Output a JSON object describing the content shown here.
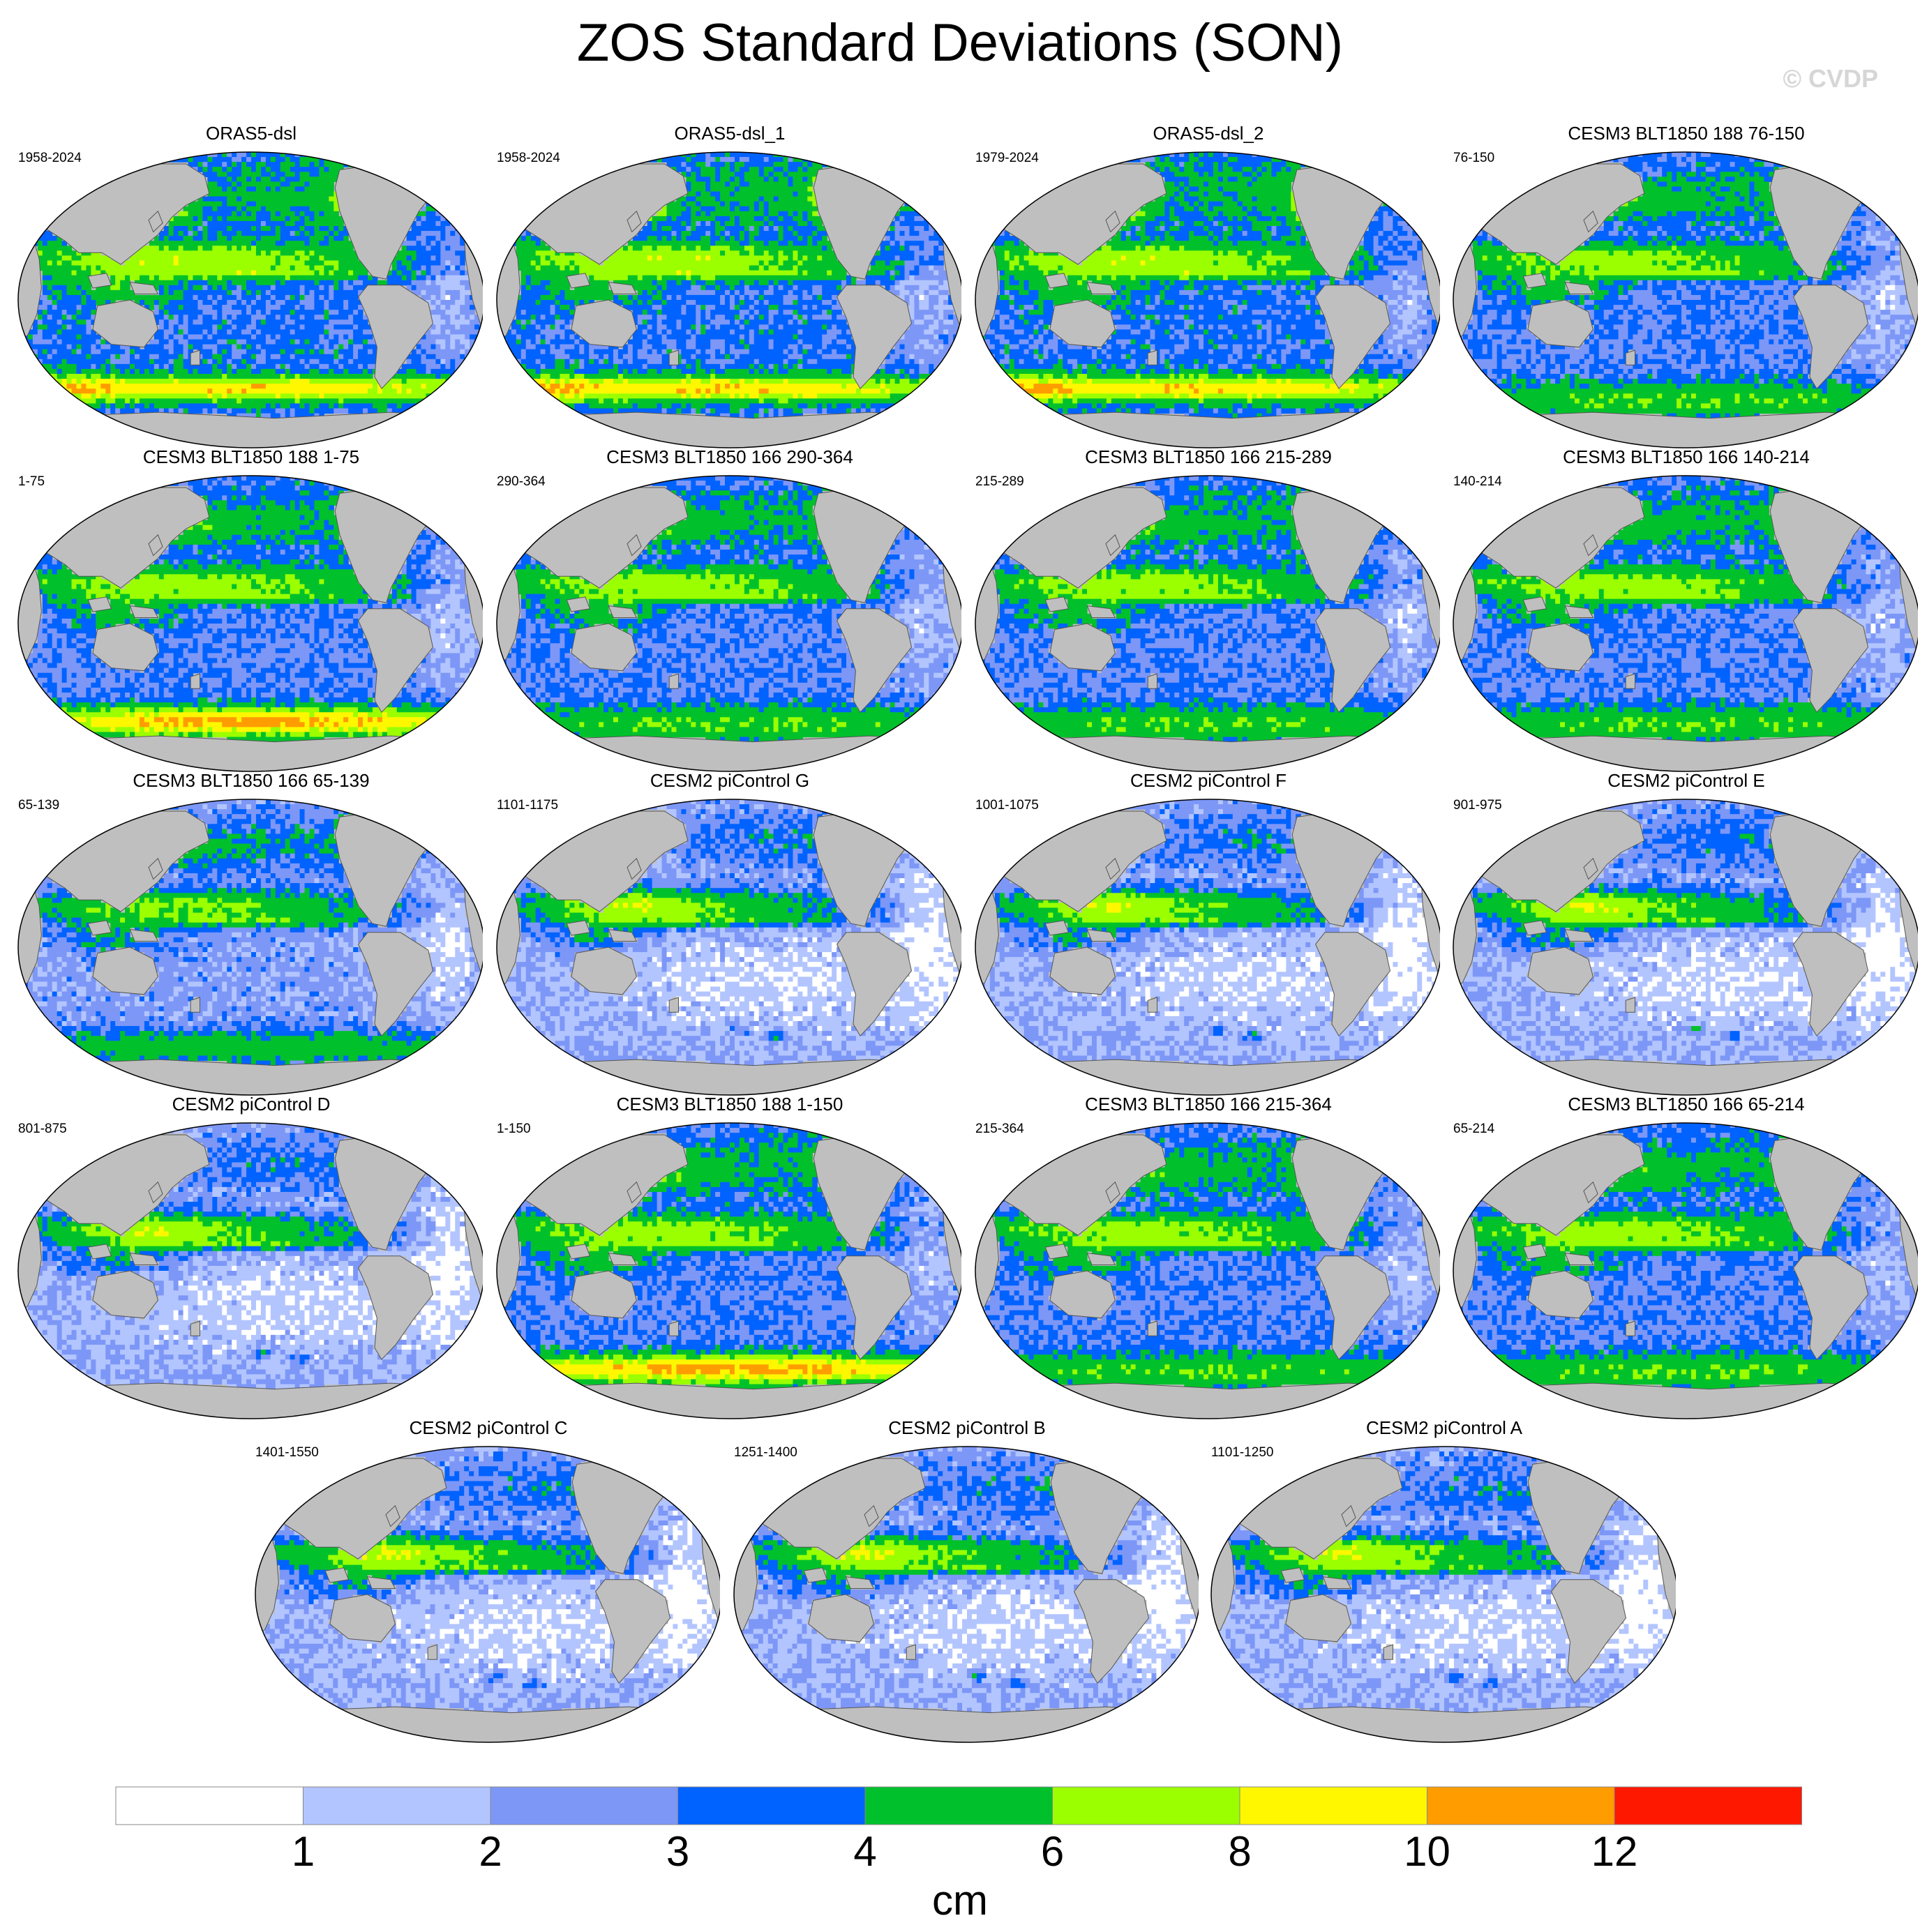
{
  "title": "ZOS Standard Deviations (SON)",
  "watermark": "© CVDP",
  "colorbar": {
    "unit": "cm",
    "levels": [
      1,
      2,
      3,
      4,
      6,
      8,
      10,
      12
    ],
    "labels": [
      "1",
      "2",
      "3",
      "4",
      "6",
      "8",
      "10",
      "12"
    ],
    "colors": [
      "#ffffff",
      "#b3c5ff",
      "#7d97f7",
      "#0062ff",
      "#00c12b",
      "#9bff00",
      "#fff700",
      "#ff9c00",
      "#ff1800"
    ]
  },
  "colors": {
    "land": "#bfbfbf",
    "coast": "#555555",
    "outline": "#000000"
  },
  "chart_data": {
    "type": "heatmap",
    "projection": "Robinson, Pacific-centred",
    "title": "ZOS Standard Deviations (SON)",
    "unit": "cm",
    "panels": [
      {
        "name": "ORAS5-dsl",
        "period": "1958-2024",
        "style": "reanalysis"
      },
      {
        "name": "ORAS5-dsl_1",
        "period": "1958-2024",
        "style": "reanalysis"
      },
      {
        "name": "ORAS5-dsl_2",
        "period": "1979-2024",
        "style": "reanalysis"
      },
      {
        "name": "CESM3 BLT1850 188 76-150",
        "period": "76-150",
        "style": "cesm3"
      },
      {
        "name": "CESM3 BLT1850 188 1-75",
        "period": "1-75",
        "style": "cesm3-strong"
      },
      {
        "name": "CESM3 BLT1850 166 290-364",
        "period": "290-364",
        "style": "cesm3"
      },
      {
        "name": "CESM3 BLT1850 166 215-289",
        "period": "215-289",
        "style": "cesm3"
      },
      {
        "name": "CESM3 BLT1850 166 140-214",
        "period": "140-214",
        "style": "cesm3"
      },
      {
        "name": "CESM3 BLT1850 166 65-139",
        "period": "65-139",
        "style": "cesm3-weak"
      },
      {
        "name": "CESM2 piControl G",
        "period": "1101-1175",
        "style": "cesm2"
      },
      {
        "name": "CESM2 piControl F",
        "period": "1001-1075",
        "style": "cesm2"
      },
      {
        "name": "CESM2 piControl E",
        "period": "901-975",
        "style": "cesm2"
      },
      {
        "name": "CESM2 piControl D",
        "period": "801-875",
        "style": "cesm2"
      },
      {
        "name": "CESM3 BLT1850 188 1-150",
        "period": "1-150",
        "style": "cesm3-strong"
      },
      {
        "name": "CESM3 BLT1850 166 215-364",
        "period": "215-364",
        "style": "cesm3"
      },
      {
        "name": "CESM3 BLT1850 166 65-214",
        "period": "65-214",
        "style": "cesm3"
      },
      {
        "name": "CESM2 piControl C",
        "period": "1401-1550",
        "style": "cesm2"
      },
      {
        "name": "CESM2 piControl B",
        "period": "1251-1400",
        "style": "cesm2"
      },
      {
        "name": "CESM2 piControl A",
        "period": "1101-1250",
        "style": "cesm2"
      }
    ]
  }
}
